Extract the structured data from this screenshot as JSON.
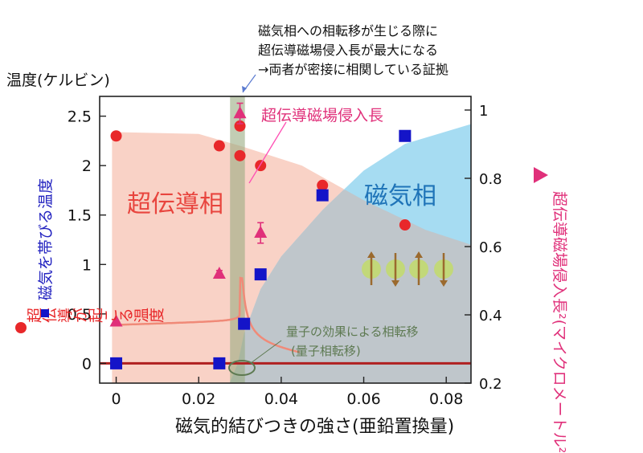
{
  "chart_data": {
    "type": "scatter",
    "xlabel": "磁気的結びつきの強さ(亜鉛置換量)",
    "ylabel_top": "温度(ケルビン)",
    "ylabel_left_red": "超伝導が起こる温度",
    "ylabel_left_blue": "磁気を帯びる温度",
    "ylabel_right": "超伝導磁場侵入長²(マイクロメートル²)",
    "xlim": [
      -0.004,
      0.086
    ],
    "ylim_left": [
      -0.2,
      2.7
    ],
    "ylim_right": [
      0.2,
      1.04
    ],
    "x_ticks": [
      "0",
      "0.02",
      "0.04",
      "0.06",
      "0.08"
    ],
    "x_tick_values": [
      0,
      0.02,
      0.04,
      0.06,
      0.08
    ],
    "y_left_ticks": [
      "0",
      "0.5",
      "1",
      "1.5",
      "2",
      "2.5"
    ],
    "y_left_tick_values": [
      0,
      0.5,
      1,
      1.5,
      2,
      2.5
    ],
    "y_right_ticks": [
      "0.2",
      "0.4",
      "0.6",
      "0.8",
      "1"
    ],
    "y_right_tick_values": [
      0.2,
      0.4,
      0.6,
      0.8,
      1.0
    ],
    "series": [
      {
        "name": "超伝導が起こる温度",
        "color": "#e8282a",
        "marker": "circle",
        "axis": "left",
        "x": [
          0,
          0.025,
          0.03,
          0.03,
          0.035,
          0.05,
          0.07
        ],
        "y": [
          2.3,
          2.2,
          2.4,
          2.1,
          2.0,
          1.8,
          1.4
        ]
      },
      {
        "name": "磁気を帯びる温度",
        "color": "#1414c8",
        "marker": "square",
        "axis": "left",
        "x": [
          0,
          0.025,
          0.031,
          0.035,
          0.05,
          0.07
        ],
        "y": [
          0,
          0,
          0.4,
          0.9,
          1.7,
          2.3
        ]
      },
      {
        "name": "超伝導磁場侵入長",
        "color": "#e0307a",
        "marker": "triangle",
        "axis": "right",
        "x": [
          0,
          0.025,
          0.03,
          0.035
        ],
        "y": [
          0.38,
          0.52,
          0.99,
          0.64
        ],
        "err": [
          0,
          0.01,
          0.03,
          0.03
        ]
      }
    ],
    "regions": {
      "superconducting_label": "超伝導相",
      "magnetic_label": "磁気相",
      "superconducting_color": "#f9d2c6",
      "magnetic_color": "#a6dcf2",
      "overlap_color": "#c0c4c8",
      "transition_band_color": "#9aab82"
    },
    "annotations": {
      "top_note_line1": "磁気相への相転移が生じる際に",
      "top_note_line2": "超伝導磁場侵入長が最大になる",
      "top_note_line3": "→両者が密接に相関している証拠",
      "penetration_label": "超伝導磁場侵入長",
      "quantum_line1": "量子の効果による相転移",
      "quantum_line2": "(量子相転移)",
      "quantum_color": "#5e7a52",
      "pink_color": "#e0307a"
    }
  }
}
